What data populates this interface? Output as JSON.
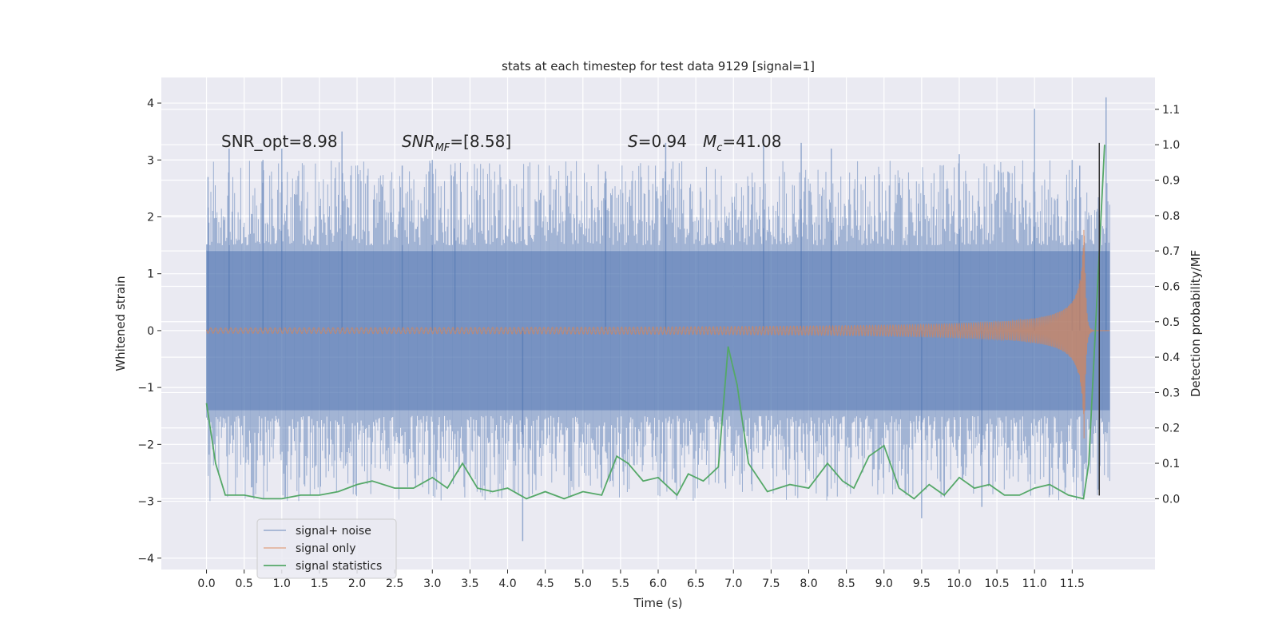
{
  "chart_data": {
    "type": "line",
    "title": "stats at each timestep for test data 9129 [signal=1]",
    "xlabel": "Time (s)",
    "ylabel_left": "Whitened strain",
    "ylabel_right": "Detection probability/MF",
    "xlim": [
      -0.6,
      12.6
    ],
    "ylim_left": [
      -4.2,
      4.45
    ],
    "ylim_right": [
      -0.2,
      1.19
    ],
    "x_ticks": [
      0.0,
      0.5,
      1.0,
      1.5,
      2.0,
      2.5,
      3.0,
      3.5,
      4.0,
      4.5,
      5.0,
      5.5,
      6.0,
      6.5,
      7.0,
      7.5,
      8.0,
      8.5,
      9.0,
      9.5,
      10.0,
      10.5,
      11.0,
      11.5
    ],
    "x_tick_labels": [
      "0.0",
      "0.5",
      "1.0",
      "1.5",
      "2.0",
      "2.5",
      "3.0",
      "3.5",
      "4.0",
      "4.5",
      "5.0",
      "5.5",
      "6.0",
      "6.5",
      "7.0",
      "7.5",
      "8.0",
      "8.5",
      "9.0",
      "9.5",
      "10.0",
      "10.5",
      "11.0",
      "11.5"
    ],
    "y_left_ticks": [
      -4,
      -3,
      -2,
      -1,
      0,
      1,
      2,
      3,
      4
    ],
    "y_left_tick_labels": [
      "−4",
      "−3",
      "−2",
      "−1",
      "0",
      "1",
      "2",
      "3",
      "4"
    ],
    "y_right_ticks": [
      0.0,
      0.1,
      0.2,
      0.3,
      0.4,
      0.5,
      0.6,
      0.7,
      0.8,
      0.9,
      1.0,
      1.1
    ],
    "y_right_tick_labels": [
      "0.0",
      "0.1",
      "0.2",
      "0.3",
      "0.4",
      "0.5",
      "0.6",
      "0.7",
      "0.8",
      "0.9",
      "1.0",
      "1.1"
    ],
    "grid": true,
    "legend_position": "lower-left",
    "annotations": {
      "snr_opt": "SNR_opt=8.98",
      "snr_mf_base": "SNR",
      "snr_mf_sub": "MF",
      "snr_mf_value": "=[8.58]",
      "s_symbol": "S",
      "s_value": "=0.94",
      "mc_symbol": "M",
      "mc_sub": "c",
      "mc_value": "=41.08"
    },
    "colors": {
      "axes_bg": "#eaeaf2",
      "grid": "#ffffff",
      "noise": "#4c72b0",
      "signal": "#dd8452",
      "stats": "#55a868",
      "marker": "#333333"
    },
    "series": [
      {
        "name": "signal+ noise",
        "axis": "left",
        "kind": "noise-band",
        "x_start": 0.0,
        "x_end": 12.0,
        "core_band": [
          -1.4,
          1.4
        ],
        "spike_times": [
          0.02,
          0.3,
          0.75,
          1.0,
          1.8,
          2.6,
          3.0,
          3.3,
          4.2,
          5.3,
          6.1,
          7.4,
          7.9,
          8.3,
          9.5,
          10.0,
          10.3,
          11.0,
          11.5,
          11.6,
          11.95
        ],
        "spike_values": [
          2.7,
          3.2,
          3.0,
          3.2,
          3.5,
          2.9,
          3.0,
          2.8,
          -3.7,
          2.8,
          3.3,
          3.4,
          3.3,
          3.2,
          -3.3,
          3.1,
          -3.1,
          3.9,
          3.0,
          2.9,
          4.1
        ]
      },
      {
        "name": "signal only",
        "axis": "left",
        "kind": "chirp",
        "x_start": 0.0,
        "x_end": 12.0,
        "merger_time": 11.66,
        "peak_amplitude": 2.0
      },
      {
        "name": "signal statistics",
        "axis": "right",
        "kind": "line",
        "x": [
          0.0,
          0.12,
          0.25,
          0.5,
          0.75,
          1.0,
          1.25,
          1.5,
          1.75,
          2.0,
          2.2,
          2.5,
          2.75,
          3.0,
          3.2,
          3.4,
          3.6,
          3.8,
          4.0,
          4.25,
          4.5,
          4.75,
          5.0,
          5.25,
          5.45,
          5.6,
          5.8,
          6.0,
          6.25,
          6.4,
          6.6,
          6.8,
          6.93,
          7.05,
          7.2,
          7.45,
          7.75,
          8.0,
          8.25,
          8.45,
          8.6,
          8.8,
          9.0,
          9.2,
          9.4,
          9.6,
          9.8,
          10.0,
          10.2,
          10.4,
          10.6,
          10.8,
          11.0,
          11.2,
          11.45,
          11.65,
          11.72,
          11.86,
          11.93
        ],
        "y": [
          0.27,
          0.1,
          0.01,
          0.01,
          0.0,
          0.0,
          0.01,
          0.01,
          0.02,
          0.04,
          0.05,
          0.03,
          0.03,
          0.06,
          0.03,
          0.1,
          0.03,
          0.02,
          0.03,
          0.0,
          0.02,
          0.0,
          0.02,
          0.01,
          0.12,
          0.1,
          0.05,
          0.06,
          0.01,
          0.07,
          0.05,
          0.09,
          0.43,
          0.32,
          0.1,
          0.02,
          0.04,
          0.03,
          0.1,
          0.05,
          0.03,
          0.12,
          0.15,
          0.03,
          0.0,
          0.04,
          0.01,
          0.06,
          0.03,
          0.04,
          0.01,
          0.01,
          0.03,
          0.04,
          0.01,
          0.0,
          0.1,
          0.7,
          1.0
        ]
      }
    ],
    "marker_line": {
      "x": 11.86,
      "y_left_range": [
        -2.9,
        3.3
      ]
    }
  }
}
